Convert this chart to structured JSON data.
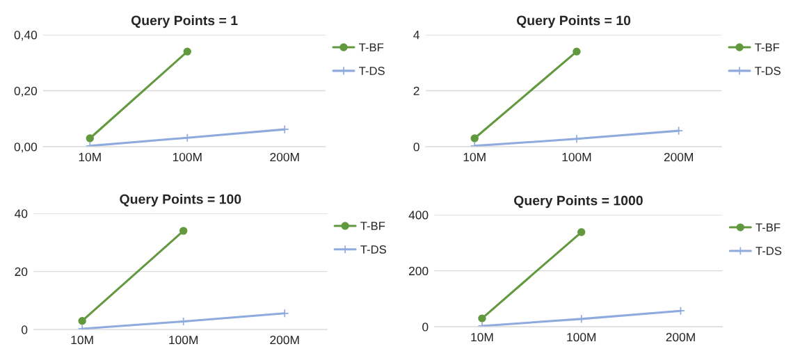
{
  "chart_data": [
    {
      "type": "line",
      "title": "Query Points = 1",
      "categories": [
        "10M",
        "100M",
        "200M"
      ],
      "series": [
        {
          "name": "T-BF",
          "color": "#62993e",
          "marker": "circle",
          "values": [
            0.03,
            0.34,
            null
          ]
        },
        {
          "name": "T-DS",
          "color": "#8faadc",
          "marker": "cross",
          "values": [
            0.003,
            0.032,
            0.062
          ]
        }
      ],
      "ylim": [
        0,
        0.4
      ],
      "yticks": [
        {
          "value": 0,
          "label": "0,00"
        },
        {
          "value": 0.2,
          "label": "0,20"
        },
        {
          "value": 0.4,
          "label": "0,40"
        }
      ],
      "grid": "y",
      "legend": "right"
    },
    {
      "type": "line",
      "title": "Query Points = 10",
      "categories": [
        "10M",
        "100M",
        "200M"
      ],
      "series": [
        {
          "name": "T-BF",
          "color": "#62993e",
          "marker": "circle",
          "values": [
            0.3,
            3.4,
            null
          ]
        },
        {
          "name": "T-DS",
          "color": "#8faadc",
          "marker": "cross",
          "values": [
            0.03,
            0.28,
            0.57
          ]
        }
      ],
      "ylim": [
        0,
        4
      ],
      "yticks": [
        0,
        2,
        4
      ],
      "grid": "y",
      "legend": "right"
    },
    {
      "type": "line",
      "title": "Query Points = 100",
      "categories": [
        "10M",
        "100M",
        "200M"
      ],
      "series": [
        {
          "name": "T-BF",
          "color": "#62993e",
          "marker": "circle",
          "values": [
            3.0,
            34,
            null
          ]
        },
        {
          "name": "T-DS",
          "color": "#8faadc",
          "marker": "cross",
          "values": [
            0.3,
            2.8,
            5.6
          ]
        }
      ],
      "ylim": [
        0,
        40
      ],
      "yticks": [
        0,
        20,
        40
      ],
      "grid": "y",
      "legend": "right"
    },
    {
      "type": "line",
      "title": "Query Points = 1000",
      "categories": [
        "10M",
        "100M",
        "200M"
      ],
      "series": [
        {
          "name": "T-BF",
          "color": "#62993e",
          "marker": "circle",
          "values": [
            30,
            338,
            null
          ]
        },
        {
          "name": "T-DS",
          "color": "#8faadc",
          "marker": "cross",
          "values": [
            3,
            28,
            57
          ]
        }
      ],
      "ylim": [
        0,
        400
      ],
      "yticks": [
        0,
        200,
        400
      ],
      "grid": "y",
      "legend": "right"
    }
  ]
}
